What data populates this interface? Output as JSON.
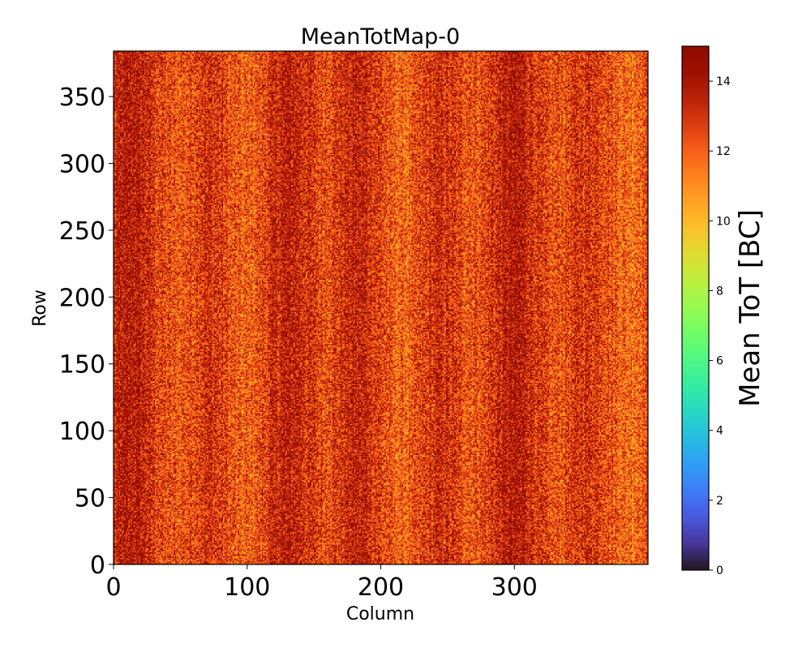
{
  "chart_data": {
    "type": "heatmap",
    "title": "MeanTotMap-0",
    "xlabel": "Column",
    "ylabel": "Row",
    "xlim": [
      0,
      400
    ],
    "ylim": [
      0,
      384
    ],
    "grid": false,
    "columns": 400,
    "rows": 384,
    "x_ticks": [
      {
        "value": 0,
        "label": "0"
      },
      {
        "value": 100,
        "label": "100"
      },
      {
        "value": 200,
        "label": "200"
      },
      {
        "value": 300,
        "label": "300"
      }
    ],
    "y_ticks": [
      {
        "value": 0,
        "label": "0"
      },
      {
        "value": 50,
        "label": "50"
      },
      {
        "value": 100,
        "label": "100"
      },
      {
        "value": 150,
        "label": "150"
      },
      {
        "value": 200,
        "label": "200"
      },
      {
        "value": 250,
        "label": "250"
      },
      {
        "value": 300,
        "label": "300"
      },
      {
        "value": 350,
        "label": "350"
      }
    ],
    "value_summary": {
      "typical_min": 10,
      "typical_max": 15,
      "mean": 12.8
    },
    "colorbar": {
      "label": "Mean ToT [BC]",
      "range": [
        0,
        15
      ],
      "colormap": "turbo",
      "ticks": [
        {
          "value": 0,
          "label": "0"
        },
        {
          "value": 2,
          "label": "2"
        },
        {
          "value": 4,
          "label": "4"
        },
        {
          "value": 6,
          "label": "6"
        },
        {
          "value": 8,
          "label": "8"
        },
        {
          "value": 10,
          "label": "10"
        },
        {
          "value": 12,
          "label": "12"
        },
        {
          "value": 14,
          "label": "14"
        }
      ]
    }
  }
}
